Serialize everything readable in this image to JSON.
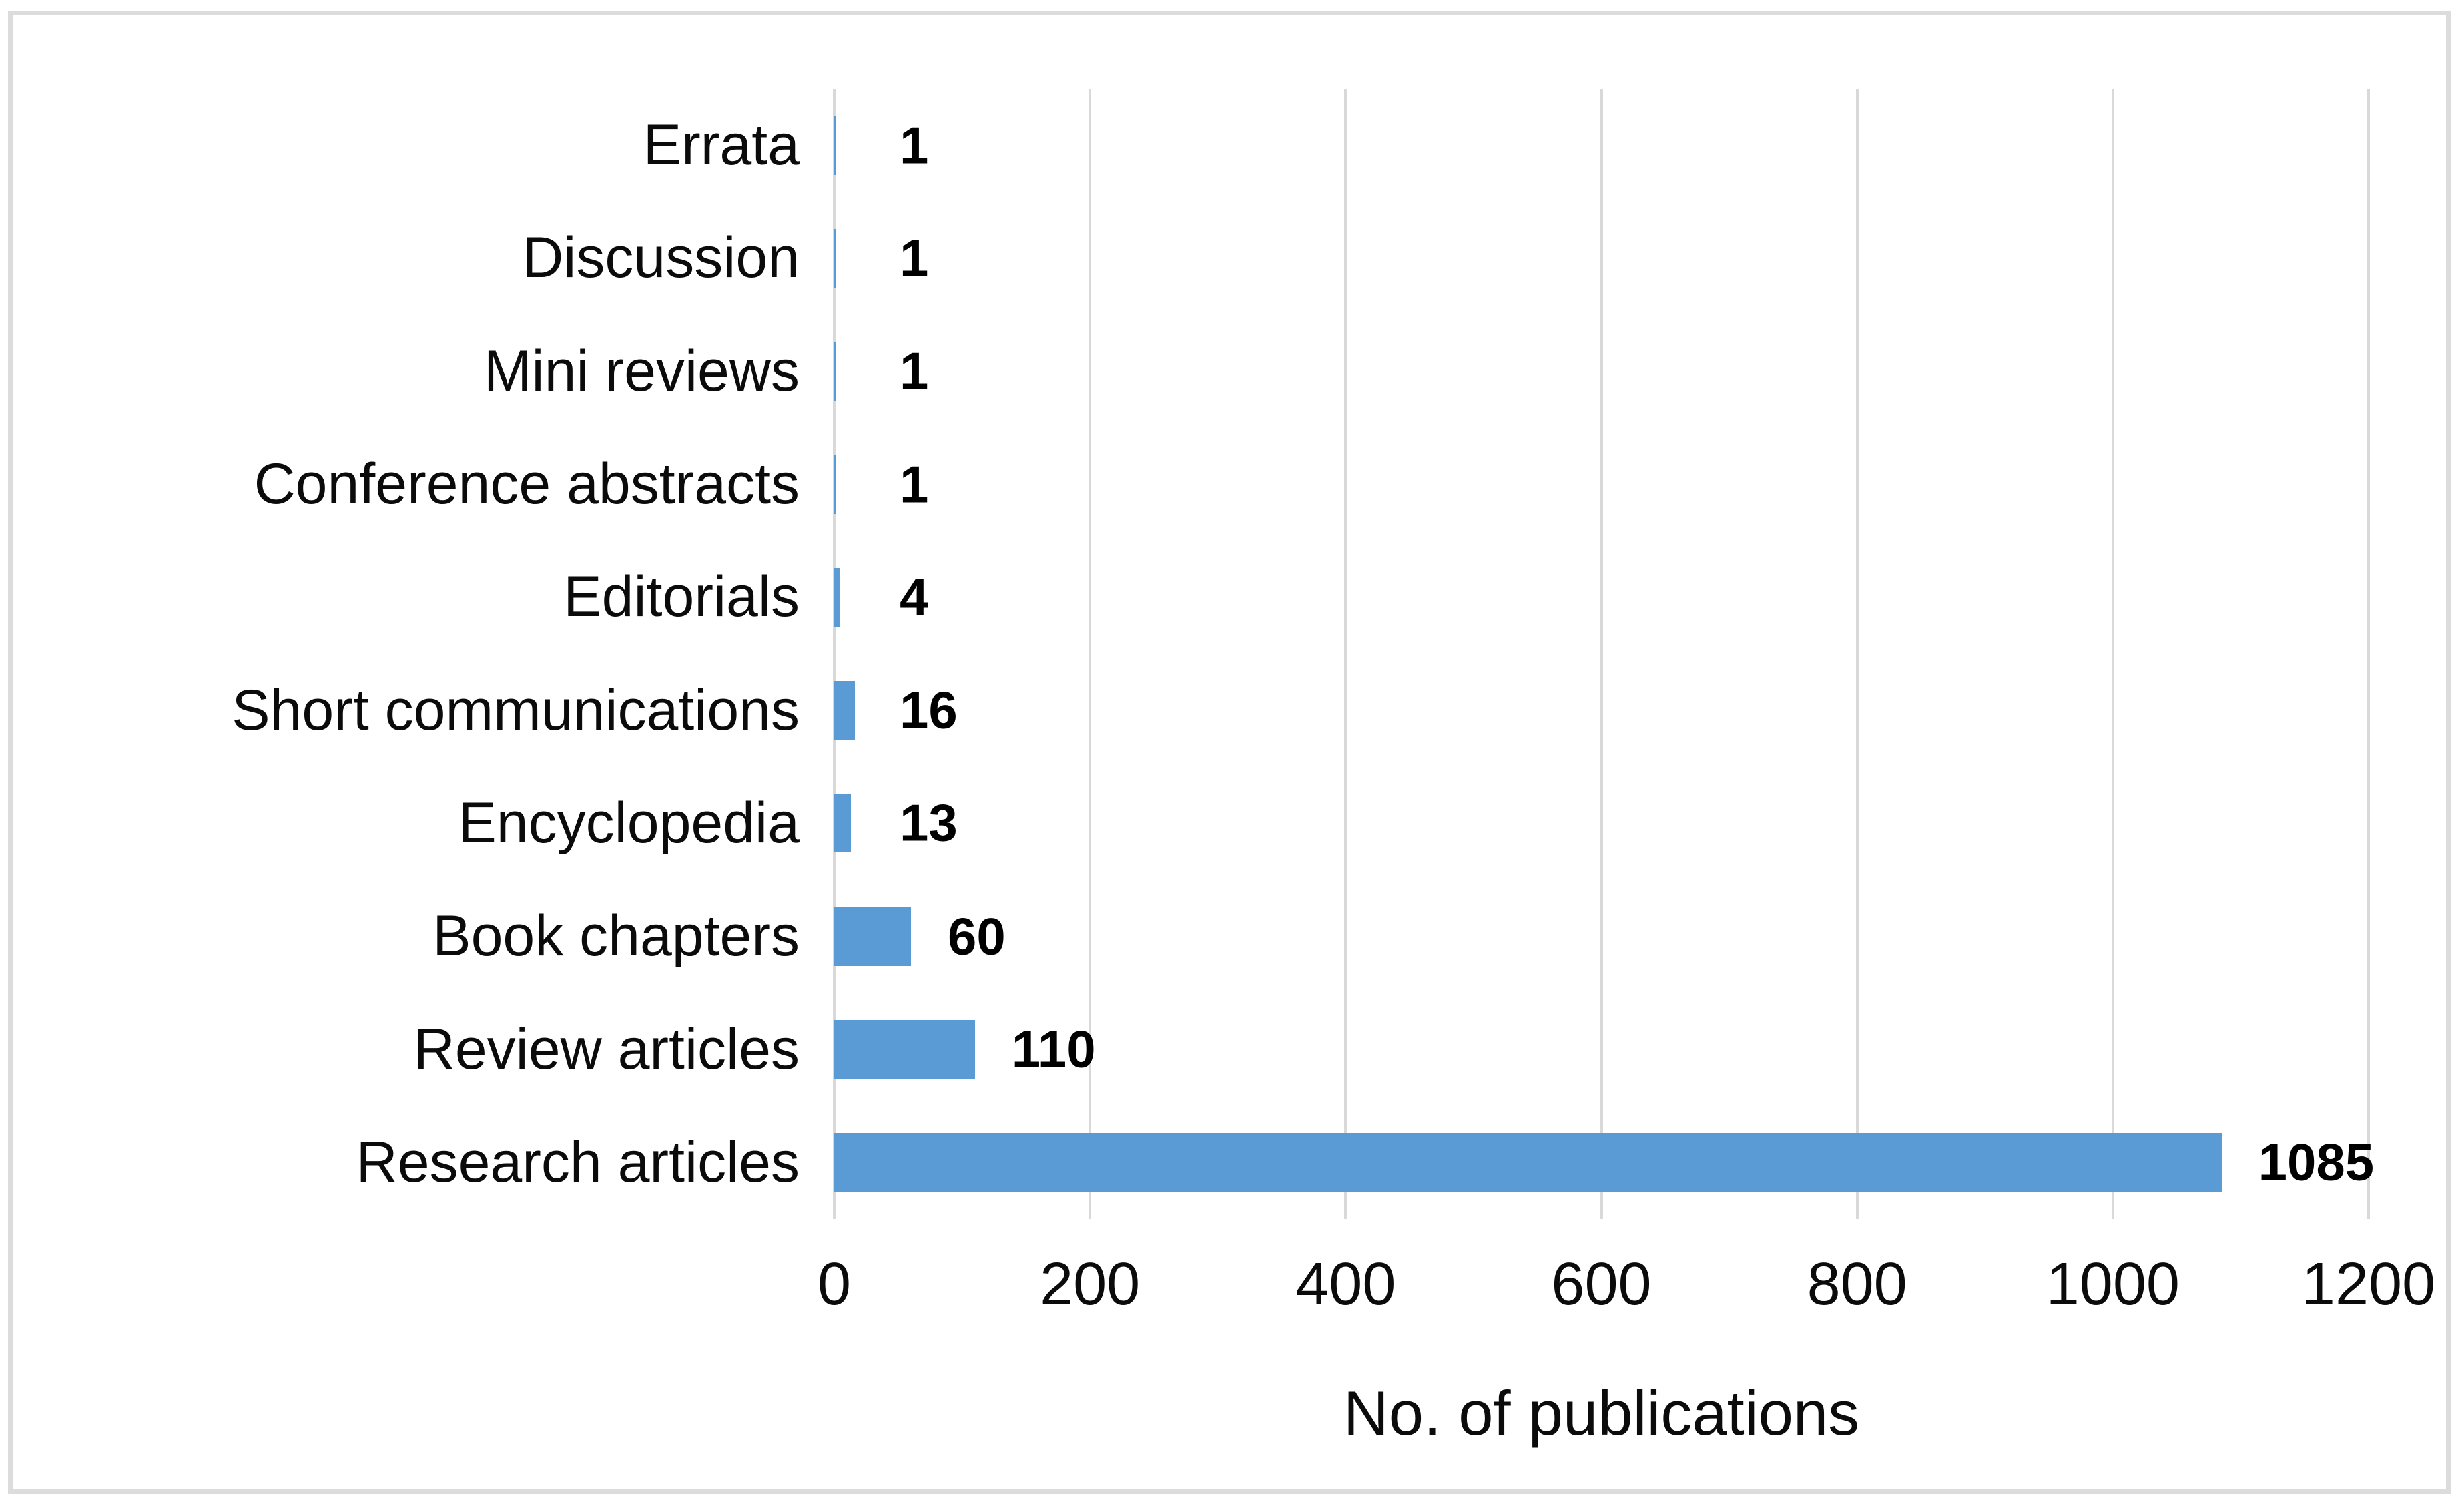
{
  "chart_data": {
    "type": "bar",
    "orientation": "horizontal",
    "xlabel": "No. of publications",
    "categories_top_to_bottom": [
      "Errata",
      "Discussion",
      "Mini reviews",
      "Conference abstracts",
      "Editorials",
      "Short communications",
      "Encyclopedia",
      "Book chapters",
      "Review articles",
      "Research articles"
    ],
    "values": [
      1,
      1,
      1,
      1,
      4,
      16,
      13,
      60,
      110,
      1085
    ],
    "xlim": [
      0,
      1200
    ],
    "xticks": [
      0,
      200,
      400,
      600,
      800,
      1000,
      1200
    ],
    "grid": "vertical gridlines visible, includes zero axis line",
    "legend": "none",
    "data_labels": "bold, outside end of each bar",
    "colors": {
      "bar": "#5B9BD5",
      "gridline": "#D9D9D9",
      "frame_border": "#DCDCDC",
      "text": "#000000",
      "background": "#FFFFFF"
    }
  }
}
